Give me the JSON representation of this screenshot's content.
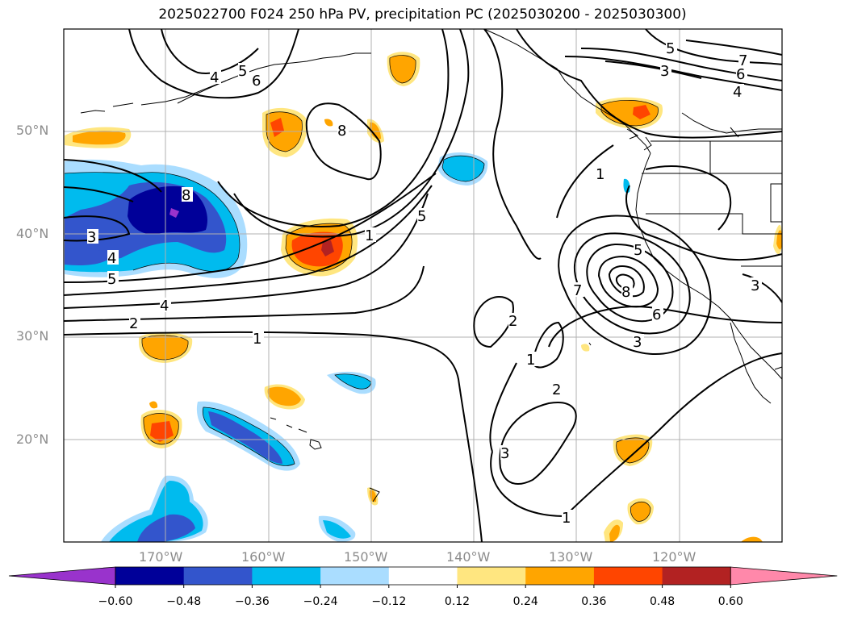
{
  "title": "2025022700 F024 250 hPa PV, precipitation PC (2025030200 - 2025030300)",
  "lat_labels": [
    "50°N",
    "40°N",
    "30°N",
    "20°N"
  ],
  "lon_labels": [
    "170°W",
    "160°W",
    "150°W",
    "140°W",
    "130°W",
    "120°W"
  ],
  "contour_labels": [
    "5",
    "4",
    "6",
    "8",
    "5",
    "7",
    "6",
    "4",
    "3",
    "1",
    "5",
    "1",
    "8",
    "3",
    "4",
    "5",
    "4",
    "2",
    "1",
    "5",
    "8",
    "6",
    "7",
    "3",
    "2",
    "1",
    "2",
    "3",
    "1",
    "3"
  ],
  "colorbar": {
    "colors": [
      "#9933cc",
      "#000099",
      "#3355cc",
      "#00bbee",
      "#aaddff",
      "#ffffff",
      "#ffe680",
      "#ffa500",
      "#ff4500",
      "#b22222",
      "#ff88aa"
    ],
    "tick_labels": [
      "−0.60",
      "−0.48",
      "−0.36",
      "−0.24",
      "−0.12",
      "0.12",
      "0.24",
      "0.36",
      "0.48",
      "0.60"
    ]
  }
}
